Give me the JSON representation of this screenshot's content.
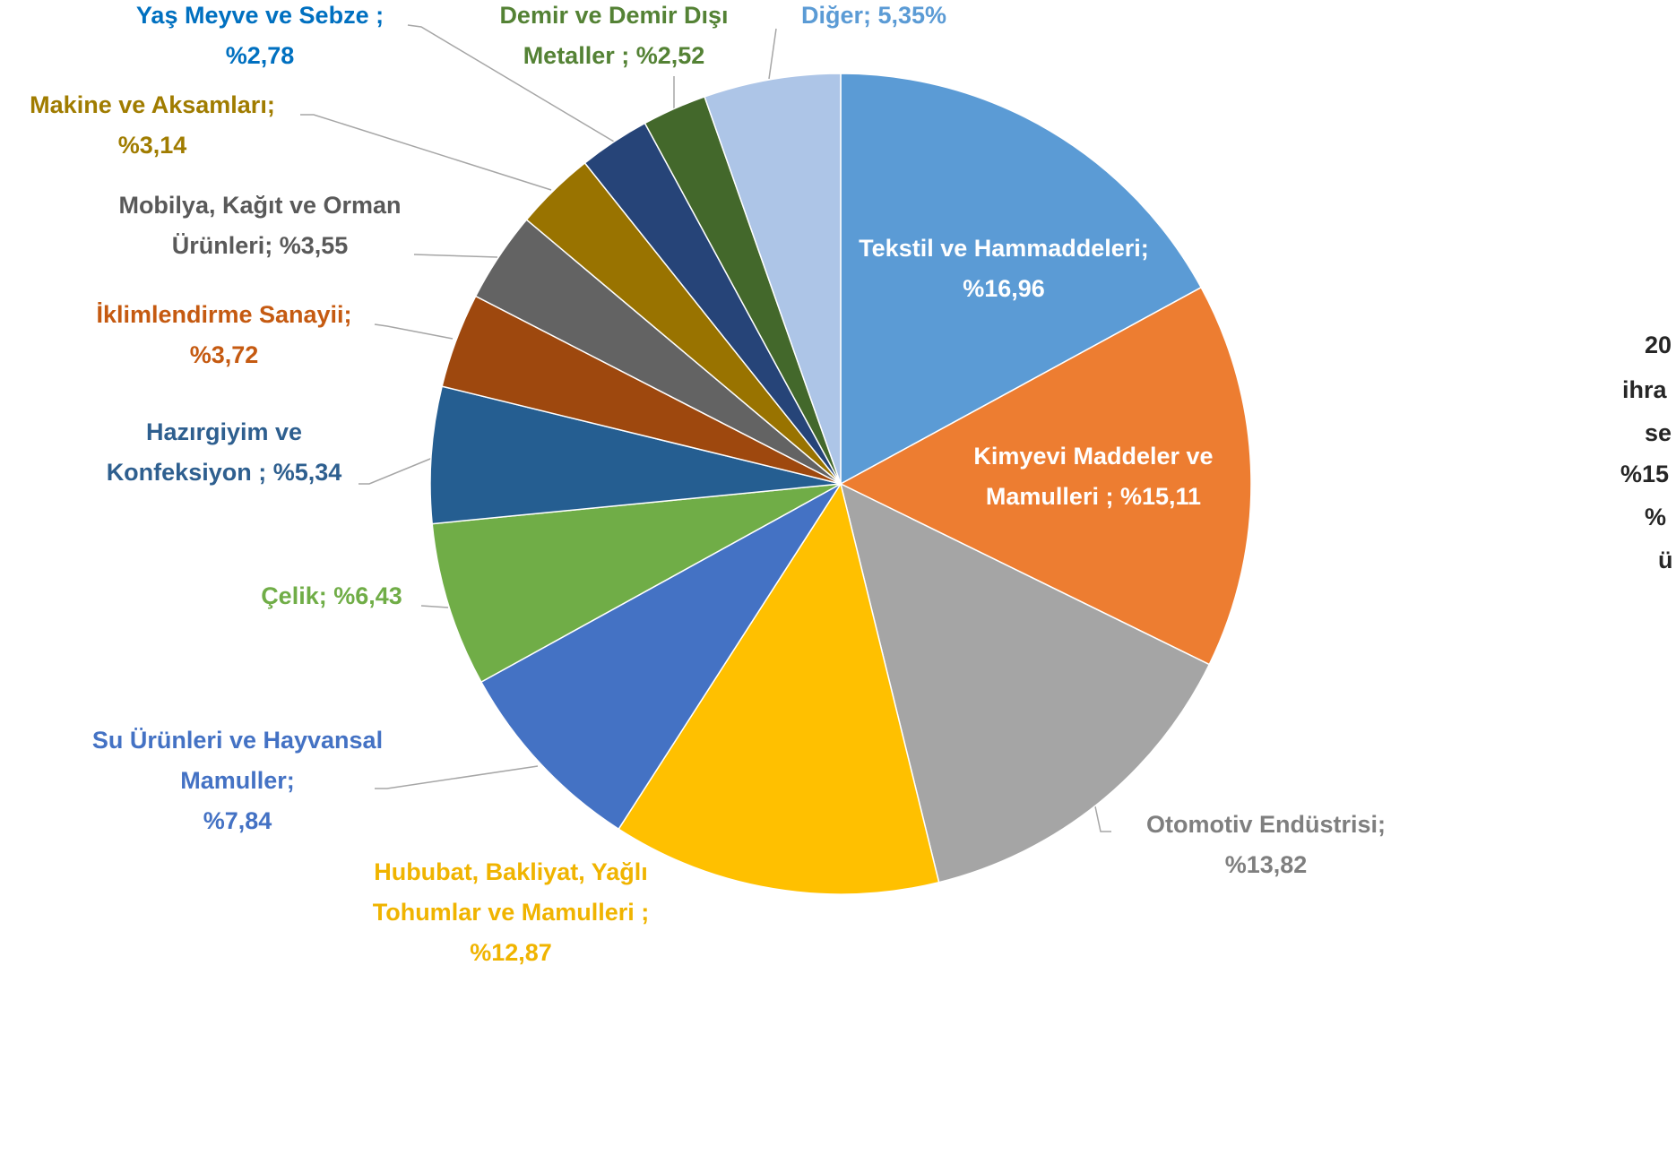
{
  "chart_data": {
    "type": "pie",
    "categories": [
      "Tekstil ve Hammaddeleri;",
      "Kimyevi Maddeler ve Mamulleri  ;",
      "Otomotiv Endüstrisi;",
      "Hububat, Bakliyat, Yağlı Tohumlar ve Mamulleri ;",
      "Su Ürünleri ve Hayvansal Mamuller;",
      "Çelik;",
      "Hazırgiyim ve Konfeksiyon ;",
      "İklimlendirme Sanayii;",
      "Mobilya, Kağıt ve Orman Ürünleri;",
      "Makine ve Aksamları;",
      "Yaş Meyve ve Sebze  ;",
      "Demir ve Demir Dışı Metaller ;",
      "Diğer;"
    ],
    "values": [
      16.96,
      15.11,
      13.82,
      12.87,
      7.84,
      6.43,
      5.34,
      3.72,
      3.55,
      3.14,
      2.78,
      2.52,
      5.35
    ],
    "value_labels": [
      "%16,96",
      "%15,11",
      "%13,82",
      "%12,87",
      "%7,84",
      "%6,43",
      "%5,34",
      "%3,72",
      "%3,55",
      "%3,14",
      "%2,78",
      "%2,52",
      "5,35%"
    ],
    "colors": [
      "#5b9bd5",
      "#ed7d31",
      "#a5a5a5",
      "#ffc000",
      "#4472c4",
      "#70ad47",
      "#255e91",
      "#9e480e",
      "#636363",
      "#997300",
      "#264478",
      "#43682b",
      "#adc5e7"
    ],
    "annotation": [
      "20",
      "ihra",
      "se",
      "%15",
      "%",
      "ü"
    ]
  }
}
